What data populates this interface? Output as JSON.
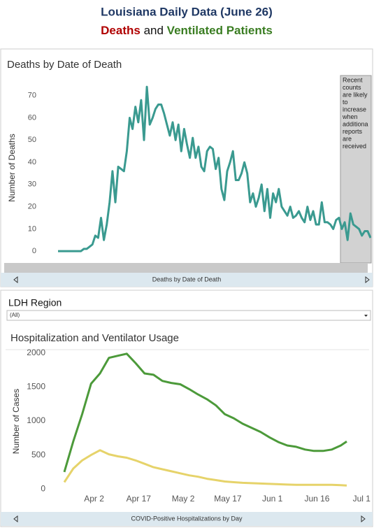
{
  "header": {
    "title": "Louisiana Daily Data (June 26)",
    "subtitle_deaths": "Deaths",
    "subtitle_and": "and",
    "subtitle_vent": "Ventilated Patients"
  },
  "chart_data": [
    {
      "type": "line",
      "title": "Deaths by Date of Death",
      "ylabel": "Number of Deaths",
      "color": "#3a9a90",
      "values": [
        0,
        0,
        0,
        0,
        0,
        0,
        0,
        0,
        0,
        1,
        1,
        2,
        3,
        7,
        6,
        15,
        5,
        12,
        22,
        36,
        22,
        38,
        37,
        36,
        45,
        60,
        55,
        65,
        58,
        68,
        50,
        74,
        57,
        60,
        64,
        66,
        66,
        62,
        57,
        52,
        58,
        50,
        57,
        45,
        55,
        48,
        42,
        51,
        42,
        47,
        38,
        36,
        45,
        47,
        46,
        37,
        42,
        28,
        23,
        36,
        40,
        45,
        32,
        32,
        35,
        40,
        35,
        22,
        26,
        20,
        24,
        30,
        18,
        28,
        15,
        26,
        22,
        28,
        20,
        18,
        16,
        20,
        15,
        16,
        18,
        15,
        13,
        20,
        14,
        18,
        12,
        12,
        22,
        13,
        13,
        12,
        10,
        14,
        15,
        10,
        13,
        5,
        17,
        12,
        11,
        10,
        7,
        9,
        9,
        6
      ],
      "ylim": [
        -5,
        80
      ],
      "yticks": [
        0,
        10,
        20,
        30,
        40,
        50,
        60,
        70
      ],
      "grid": false,
      "annotation": [
        "Recent",
        "counts",
        "are likely",
        "to",
        "increase",
        "when",
        "additiona",
        "reports",
        "are",
        "received"
      ],
      "scrollbar_label": "Deaths by Date of Death"
    },
    {
      "type": "line",
      "title": "Hospitalization and Ventilator Usage",
      "ylabel": "Number of Cases",
      "filter_label": "LDH Region",
      "filter_value": "(All)",
      "x": [
        "Mar 23",
        "Mar 26",
        "Mar 29",
        "Apr 1",
        "Apr 4",
        "Apr 7",
        "Apr 10",
        "Apr 13",
        "Apr 16",
        "Apr 19",
        "Apr 22",
        "Apr 25",
        "Apr 28",
        "May 1",
        "May 4",
        "May 7",
        "May 10",
        "May 13",
        "May 16",
        "May 19",
        "May 22",
        "May 25",
        "May 28",
        "May 31",
        "Jun 3",
        "Jun 6",
        "Jun 9",
        "Jun 12",
        "Jun 15",
        "Jun 18",
        "Jun 21",
        "Jun 24",
        "Jun 26"
      ],
      "series": [
        {
          "color": "#4c9a3a",
          "values": [
            250,
            700,
            1100,
            1550,
            1700,
            1930,
            1960,
            1990,
            1850,
            1700,
            1680,
            1590,
            1560,
            1540,
            1470,
            1390,
            1320,
            1230,
            1100,
            1040,
            960,
            900,
            840,
            760,
            690,
            640,
            620,
            580,
            560,
            560,
            580,
            640,
            700
          ]
        },
        {
          "color": "#e6d36a",
          "values": [
            100,
            300,
            420,
            500,
            570,
            510,
            480,
            460,
            420,
            370,
            320,
            290,
            260,
            230,
            200,
            180,
            150,
            130,
            110,
            100,
            90,
            85,
            80,
            75,
            70,
            65,
            60,
            60,
            60,
            60,
            60,
            55,
            50
          ]
        }
      ],
      "xlim": [
        "Mar 19",
        "Jul 4"
      ],
      "xticks": [
        "Apr 2",
        "Apr 17",
        "May 2",
        "May 17",
        "Jun 1",
        "Jun 16",
        "Jul 1"
      ],
      "ylim": [
        -60,
        2050
      ],
      "yticks": [
        0,
        500,
        1000,
        1500,
        2000
      ],
      "grid": false,
      "scrollbar_label": "COVID-Positive Hospitalizations by Day"
    }
  ]
}
